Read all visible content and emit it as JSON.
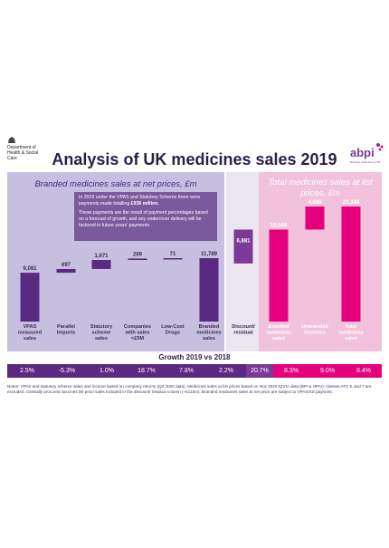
{
  "header": {
    "dept_name": "Department of Health & Social Care",
    "title": "Analysis of UK medicines sales 2019",
    "abpi_logo_text": "abpi",
    "abpi_tagline": "Bringing medicines to life"
  },
  "panels": {
    "left_title": "Branded medicines sales at net prices, £m",
    "right_title": "Total medicines sales at list prices, £m"
  },
  "note": {
    "para1_pre": "In 2019 under the VPAS and Statutory Scheme there were payments made totalling ",
    "para1_bold": "£936 million.",
    "para2": "These payments are the result of payment percentages based on a forecast of growth, and any under/over delivery will be factored in future years' payments."
  },
  "growth": {
    "title": "Growth 2019 vs 2018",
    "values": [
      "2.5%",
      "-5.3%",
      "1.0%",
      "18.7%",
      "7.8%",
      "2.2%",
      "20.7%",
      "8.3%",
      "9.0%",
      "8.4%"
    ]
  },
  "footnote": "Notes: VPAS and statutory scheme sales and income based on company returns (Q3 2020 data). Medicines sales at list prices based on Nov 2020 IQVIA data (BPI & HPAI); classes ATC K and T are excluded. Centrally procured vaccines list price sales included in the discount/ residual column (~£115m). Branded medicines sales at net price are subject to VPAS/SS payment.",
  "chart_data": {
    "type": "bar",
    "title": "Analysis of UK medicines sales 2019",
    "categories": [
      "VPAS measured sales",
      "Parallel Imports",
      "Statutory scheme sales",
      "Companies with sales <£5M",
      "Low-Cost Drugs",
      "Branded medicines sales",
      "Discount/ residual",
      "Branded medicines sales",
      "Unbranded Generics",
      "Total medicines sales"
    ],
    "values": [
      9081,
      697,
      1671,
      269,
      71,
      11789,
      6881,
      18669,
      4680,
      23349
    ],
    "value_labels": [
      "9,081",
      "697",
      "1,671",
      "269",
      "71",
      "11,789",
      "6,881",
      "18,669",
      "4,680",
      "23,349"
    ],
    "kind": [
      "total",
      "increment",
      "increment",
      "increment",
      "increment",
      "total",
      "increment",
      "total",
      "increment",
      "total"
    ],
    "colors": {
      "dark_purple": "#5a2a82",
      "discount_purple": "#7b3a98",
      "pink": "#e6007e"
    }
  }
}
